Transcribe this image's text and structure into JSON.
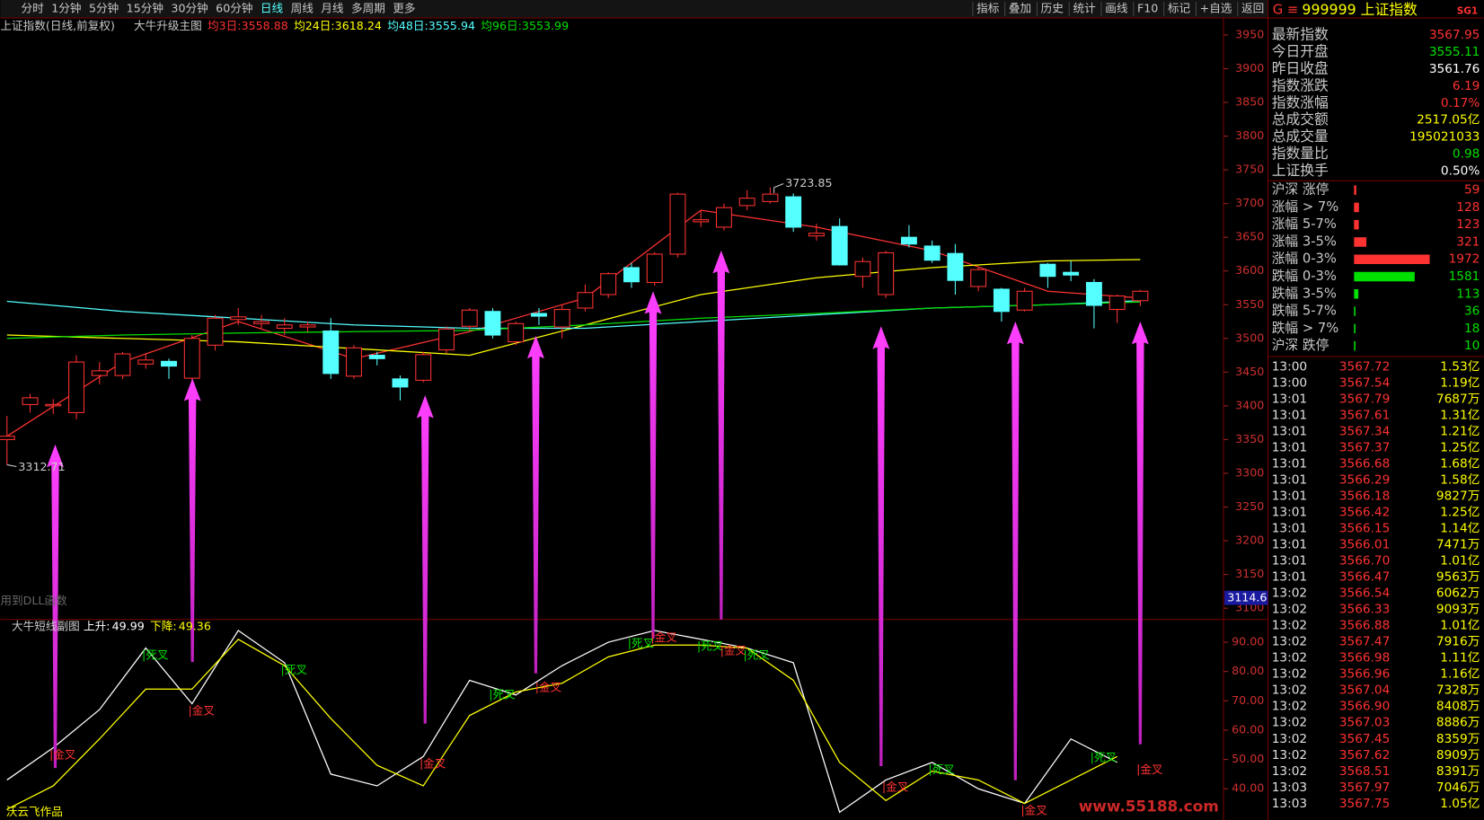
{
  "menu": {
    "left": [
      "分时",
      "1分钟",
      "5分钟",
      "15分钟",
      "30分钟",
      "60分钟",
      "日线",
      "周线",
      "月线",
      "多周期",
      "更多"
    ],
    "right": [
      "指标",
      "叠加",
      "历史",
      "统计",
      "画线",
      "F10",
      "标记",
      "+自选",
      "返回"
    ]
  },
  "main_header": {
    "name": "上证指数(日线,前复权)",
    "indicator": "大牛升级主图",
    "ma": [
      {
        "label": "均3日:",
        "value": 3558.88,
        "color": "#ff3232"
      },
      {
        "label": "均24日:",
        "value": 3618.24,
        "color": "#ffff00"
      },
      {
        "label": "均48日:",
        "value": 3555.94,
        "color": "#54ffff"
      },
      {
        "label": "均96日:",
        "value": 3553.99,
        "color": "#00e000"
      }
    ]
  },
  "chart": {
    "type": "candlestick",
    "ylim": [
      3083.2,
      3973.8
    ],
    "yticks": [
      3100,
      3150,
      3200,
      3250,
      3300,
      3350,
      3400,
      3450,
      3500,
      3550,
      3600,
      3650,
      3700,
      3750,
      3800,
      3850,
      3900,
      3950
    ],
    "cursor_price": 3114.6,
    "up_color": "#ff3232",
    "down_color": "#54ffff",
    "candles": {
      "open": [
        3350,
        3402,
        3400,
        3390,
        3445,
        3445,
        3462,
        3466,
        3441,
        3490,
        3528,
        3522,
        3515,
        3517,
        3511,
        3444,
        3475,
        3440,
        3438,
        3483,
        3518,
        3540,
        3495,
        3537,
        3517,
        3545,
        3565,
        3605,
        3583,
        3625,
        3673,
        3665,
        3697,
        3703,
        3710,
        3652,
        3666,
        3592,
        3565,
        3650,
        3637,
        3626,
        3577,
        3573,
        3542,
        3610,
        3598,
        3583,
        3543,
        3556
      ],
      "high": [
        3385,
        3418,
        3410,
        3475,
        3465,
        3480,
        3478,
        3470,
        3505,
        3535,
        3545,
        3535,
        3530,
        3525,
        3530,
        3490,
        3480,
        3445,
        3480,
        3518,
        3545,
        3545,
        3525,
        3545,
        3550,
        3580,
        3598,
        3612,
        3628,
        3716,
        3690,
        3700,
        3720,
        3723.85,
        3715,
        3670,
        3678,
        3620,
        3630,
        3668,
        3645,
        3640,
        3605,
        3575,
        3575,
        3612,
        3615,
        3588,
        3565,
        3572
      ],
      "low": [
        3312.71,
        3390,
        3388,
        3380,
        3432,
        3440,
        3455,
        3440,
        3438,
        3482,
        3520,
        3515,
        3505,
        3510,
        3440,
        3440,
        3460,
        3408,
        3435,
        3478,
        3512,
        3500,
        3490,
        3520,
        3500,
        3540,
        3560,
        3575,
        3578,
        3620,
        3665,
        3660,
        3690,
        3700,
        3658,
        3645,
        3608,
        3575,
        3560,
        3635,
        3612,
        3565,
        3570,
        3525,
        3540,
        3575,
        3585,
        3515,
        3523,
        3548
      ],
      "close": [
        3355,
        3412,
        3402,
        3465,
        3452,
        3477,
        3468,
        3459,
        3500,
        3530,
        3532,
        3525,
        3520,
        3520,
        3448,
        3486,
        3470,
        3428,
        3476,
        3514,
        3542,
        3505,
        3522,
        3533,
        3543,
        3568,
        3596,
        3584,
        3625,
        3714,
        3676,
        3694,
        3708,
        3714,
        3665,
        3656,
        3609,
        3614,
        3627,
        3640,
        3616,
        3586,
        3602,
        3540,
        3570,
        3592,
        3594,
        3549,
        3563,
        3570
      ]
    },
    "ma_lines": {
      "index": [
        0,
        5,
        10,
        15,
        20,
        25,
        30,
        35,
        40,
        45,
        49
      ],
      "series": [
        {
          "color": "#ff3232",
          "values": [
            3355,
            3465,
            3525,
            3470,
            3510,
            3560,
            3690,
            3665,
            3630,
            3570,
            3560
          ]
        },
        {
          "color": "#ffff00",
          "values": [
            3505,
            3500,
            3495,
            3485,
            3475,
            3520,
            3565,
            3590,
            3605,
            3615,
            3617
          ]
        },
        {
          "color": "#54ffff",
          "values": [
            3555,
            3540,
            3530,
            3520,
            3515,
            3515,
            3525,
            3535,
            3545,
            3550,
            3556
          ]
        },
        {
          "color": "#00e000",
          "values": [
            3500,
            3505,
            3508,
            3510,
            3512,
            3520,
            3530,
            3537,
            3545,
            3550,
            3554
          ]
        }
      ]
    },
    "note": "用到DLL函数"
  },
  "sub_header": {
    "name": "大牛短线副图",
    "up_label": "上升:",
    "up_value": 49.99,
    "down_label": "下降:",
    "down_value": 49.36
  },
  "sub_chart": {
    "type": "line",
    "ylim": [
      29.35,
      97.1
    ],
    "yticks": [
      {
        "value": 40,
        "label": "40.00"
      },
      {
        "value": 50,
        "label": "50.00"
      },
      {
        "value": 60,
        "label": "60.00"
      },
      {
        "value": 70,
        "label": "70.00"
      },
      {
        "value": 80,
        "label": "80.00"
      },
      {
        "value": 90,
        "label": "90.00"
      }
    ],
    "index": [
      0,
      2,
      4,
      6,
      8,
      10,
      12,
      14,
      16,
      18,
      20,
      22,
      24,
      26,
      28,
      30,
      32,
      34,
      36,
      38,
      40,
      42,
      44,
      46,
      48
    ],
    "series": [
      {
        "color": "#ffffff",
        "values": [
          43,
          54,
          67,
          88,
          69,
          94,
          83,
          45,
          41,
          51,
          77,
          72,
          82,
          90,
          94,
          91,
          88,
          83,
          32,
          43,
          49,
          40,
          35,
          57,
          49
        ]
      },
      {
        "color": "#ffff00",
        "values": [
          33,
          41,
          57,
          74,
          74,
          91,
          82,
          64,
          48,
          41,
          65,
          73,
          76,
          85,
          89,
          89,
          88,
          77,
          49,
          36,
          46,
          43,
          35,
          43,
          51
        ]
      }
    ],
    "signals": [
      {
        "index": 2,
        "label": "金叉",
        "color": "#ff3232"
      },
      {
        "index": 6,
        "label": "死叉",
        "color": "#00e000"
      },
      {
        "index": 8,
        "label": "金叉",
        "color": "#ff3232"
      },
      {
        "index": 12,
        "label": "死叉",
        "color": "#00e000"
      },
      {
        "index": 18,
        "label": "金叉",
        "color": "#ff3232"
      },
      {
        "index": 21,
        "label": "死叉",
        "color": "#00e000"
      },
      {
        "index": 23,
        "label": "金叉",
        "color": "#ff3232"
      },
      {
        "index": 27,
        "label": "死叉",
        "color": "#00e000"
      },
      {
        "index": 28,
        "label": "金叉",
        "color": "#ff3232"
      },
      {
        "index": 30,
        "label": "死叉",
        "color": "#00e000"
      },
      {
        "index": 31,
        "label": "金叉",
        "color": "#ff3232"
      },
      {
        "index": 32,
        "label": "死叉",
        "color": "#00e000"
      },
      {
        "index": 38,
        "label": "金叉",
        "color": "#ff3232"
      },
      {
        "index": 40,
        "label": "死叉",
        "color": "#00e000"
      },
      {
        "index": 44,
        "label": "金叉",
        "color": "#ff3232"
      },
      {
        "index": 47,
        "label": "死叉",
        "color": "#00e000"
      },
      {
        "index": 49,
        "label": "金叉",
        "color": "#ff3232"
      }
    ],
    "footer": "沃云飞作品",
    "watermark": "www.55188.com"
  },
  "quote": {
    "prefix": "G ≡",
    "code": "999999 上证指数",
    "tag": "SG1",
    "fields": [
      {
        "label": "最新指数",
        "value": 3567.95,
        "color": "#ff3232"
      },
      {
        "label": "今日开盘",
        "value": 3555.11,
        "color": "#00e000"
      },
      {
        "label": "昨日收盘",
        "value": 3561.76,
        "color": "#ffffff"
      },
      {
        "label": "指数涨跌",
        "value": 6.19,
        "color": "#ff3232"
      },
      {
        "label": "指数涨幅",
        "value": "0.17%",
        "color": "#ff3232"
      },
      {
        "label": "总成交额",
        "value": "2517.05亿",
        "color": "#ffff00"
      },
      {
        "label": "总成交量",
        "value": 195021033,
        "color": "#ffff00"
      },
      {
        "label": "指数量比",
        "value": 0.98,
        "color": "#00e000"
      },
      {
        "label": "上证换手",
        "value": "0.50%",
        "color": "#ffffff"
      }
    ],
    "breadth": [
      {
        "label": "沪深 涨停",
        "value": 59,
        "color": "#ff3232"
      },
      {
        "label": "涨幅 > 7%",
        "value": 128,
        "color": "#ff3232"
      },
      {
        "label": "涨幅 5-7%",
        "value": 123,
        "color": "#ff3232"
      },
      {
        "label": "涨幅 3-5%",
        "value": 321,
        "color": "#ff3232"
      },
      {
        "label": "涨幅 0-3%",
        "value": 1972,
        "color": "#ff3232"
      },
      {
        "label": "跌幅 0-3%",
        "value": 1581,
        "color": "#00e000"
      },
      {
        "label": "跌幅 3-5%",
        "value": 113,
        "color": "#00e000"
      },
      {
        "label": "跌幅 5-7%",
        "value": 36,
        "color": "#00e000"
      },
      {
        "label": "跌幅 > 7%",
        "value": 18,
        "color": "#00e000"
      },
      {
        "label": "沪深 跌停",
        "value": 10,
        "color": "#00e000"
      }
    ],
    "ticks": [
      [
        "13:00",
        "3567.72",
        "1.53亿"
      ],
      [
        "13:00",
        "3567.54",
        "1.19亿"
      ],
      [
        "13:01",
        "3567.79",
        "7687万"
      ],
      [
        "13:01",
        "3567.61",
        "1.31亿"
      ],
      [
        "13:01",
        "3567.34",
        "1.21亿"
      ],
      [
        "13:01",
        "3567.37",
        "1.25亿"
      ],
      [
        "13:01",
        "3566.68",
        "1.68亿"
      ],
      [
        "13:01",
        "3566.29",
        "1.58亿"
      ],
      [
        "13:01",
        "3566.18",
        "9827万"
      ],
      [
        "13:01",
        "3566.42",
        "1.25亿"
      ],
      [
        "13:01",
        "3566.15",
        "1.14亿"
      ],
      [
        "13:01",
        "3566.01",
        "7471万"
      ],
      [
        "13:01",
        "3566.70",
        "1.01亿"
      ],
      [
        "13:01",
        "3566.47",
        "9563万"
      ],
      [
        "13:02",
        "3566.54",
        "6062万"
      ],
      [
        "13:02",
        "3566.33",
        "9093万"
      ],
      [
        "13:02",
        "3566.88",
        "1.01亿"
      ],
      [
        "13:02",
        "3567.47",
        "7916万"
      ],
      [
        "13:02",
        "3566.98",
        "1.11亿"
      ],
      [
        "13:02",
        "3566.96",
        "1.16亿"
      ],
      [
        "13:02",
        "3567.04",
        "7328万"
      ],
      [
        "13:02",
        "3566.90",
        "8408万"
      ],
      [
        "13:02",
        "3567.03",
        "8886万"
      ],
      [
        "13:02",
        "3567.45",
        "8359万"
      ],
      [
        "13:02",
        "3567.62",
        "8909万"
      ],
      [
        "13:02",
        "3568.51",
        "8391万"
      ],
      [
        "13:03",
        "3567.97",
        "7046万"
      ],
      [
        "13:03",
        "3567.75",
        "1.05亿"
      ]
    ]
  }
}
